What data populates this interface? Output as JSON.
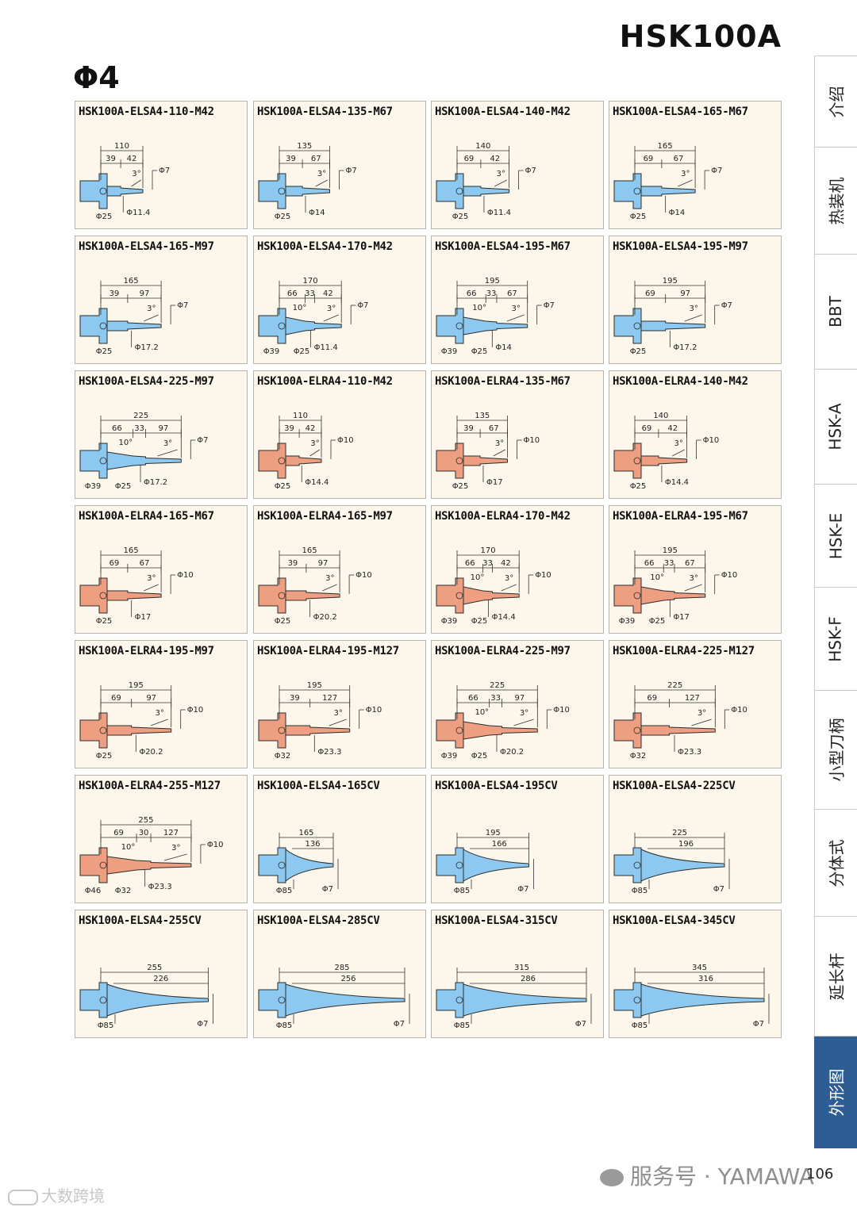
{
  "header": {
    "series": "HSK100A",
    "section": "Φ4"
  },
  "cards": [
    {
      "title": "HSK100A-ELSA4-110-M42",
      "kind": "nozzle",
      "color": "blue",
      "overall": "110",
      "sub": [
        "39",
        "42"
      ],
      "cone": false,
      "angle": "3°",
      "tip": "Φ7",
      "bases": [
        "Φ25"
      ],
      "neck": "Φ11.4"
    },
    {
      "title": "HSK100A-ELSA4-135-M67",
      "kind": "nozzle",
      "color": "blue",
      "overall": "135",
      "sub": [
        "39",
        "67"
      ],
      "cone": false,
      "angle": "3°",
      "tip": "Φ7",
      "bases": [
        "Φ25"
      ],
      "neck": "Φ14"
    },
    {
      "title": "HSK100A-ELSA4-140-M42",
      "kind": "nozzle",
      "color": "blue",
      "overall": "140",
      "sub": [
        "69",
        "42"
      ],
      "cone": false,
      "angle": "3°",
      "tip": "Φ7",
      "bases": [
        "Φ25"
      ],
      "neck": "Φ11.4"
    },
    {
      "title": "HSK100A-ELSA4-165-M67",
      "kind": "nozzle",
      "color": "blue",
      "overall": "165",
      "sub": [
        "69",
        "67"
      ],
      "cone": false,
      "angle": "3°",
      "tip": "Φ7",
      "bases": [
        "Φ25"
      ],
      "neck": "Φ14"
    },
    {
      "title": "HSK100A-ELSA4-165-M97",
      "kind": "nozzle",
      "color": "blue",
      "overall": "165",
      "sub": [
        "39",
        "97"
      ],
      "cone": false,
      "angle": "3°",
      "tip": "Φ7",
      "bases": [
        "Φ25"
      ],
      "neck": "Φ17.2"
    },
    {
      "title": "HSK100A-ELSA4-170-M42",
      "kind": "nozzle",
      "color": "blue",
      "overall": "170",
      "sub": [
        "66",
        "33",
        "42"
      ],
      "cone": true,
      "cone_angle": "10°",
      "angle": "3°",
      "tip": "Φ7",
      "bases": [
        "Φ39",
        "Φ25"
      ],
      "neck": "Φ11.4"
    },
    {
      "title": "HSK100A-ELSA4-195-M67",
      "kind": "nozzle",
      "color": "blue",
      "overall": "195",
      "sub": [
        "66",
        "33",
        "67"
      ],
      "cone": true,
      "cone_angle": "10°",
      "angle": "3°",
      "tip": "Φ7",
      "bases": [
        "Φ39",
        "Φ25"
      ],
      "neck": "Φ14"
    },
    {
      "title": "HSK100A-ELSA4-195-M97",
      "kind": "nozzle",
      "color": "blue",
      "overall": "195",
      "sub": [
        "69",
        "97"
      ],
      "cone": false,
      "angle": "3°",
      "tip": "Φ7",
      "bases": [
        "Φ25"
      ],
      "neck": "Φ17.2"
    },
    {
      "title": "HSK100A-ELSA4-225-M97",
      "kind": "nozzle",
      "color": "blue",
      "overall": "225",
      "sub": [
        "66",
        "33",
        "97"
      ],
      "cone": true,
      "cone_angle": "10°",
      "angle": "3°",
      "tip": "Φ7",
      "bases": [
        "Φ39",
        "Φ25"
      ],
      "neck": "Φ17.2"
    },
    {
      "title": "HSK100A-ELRA4-110-M42",
      "kind": "nozzle",
      "color": "red",
      "overall": "110",
      "sub": [
        "39",
        "42"
      ],
      "cone": false,
      "angle": "3°",
      "tip": "Φ10",
      "bases": [
        "Φ25"
      ],
      "neck": "Φ14.4"
    },
    {
      "title": "HSK100A-ELRA4-135-M67",
      "kind": "nozzle",
      "color": "red",
      "overall": "135",
      "sub": [
        "39",
        "67"
      ],
      "cone": false,
      "angle": "3°",
      "tip": "Φ10",
      "bases": [
        "Φ25"
      ],
      "neck": "Φ17"
    },
    {
      "title": "HSK100A-ELRA4-140-M42",
      "kind": "nozzle",
      "color": "red",
      "overall": "140",
      "sub": [
        "69",
        "42"
      ],
      "cone": false,
      "angle": "3°",
      "tip": "Φ10",
      "bases": [
        "Φ25"
      ],
      "neck": "Φ14.4"
    },
    {
      "title": "HSK100A-ELRA4-165-M67",
      "kind": "nozzle",
      "color": "red",
      "overall": "165",
      "sub": [
        "69",
        "67"
      ],
      "cone": false,
      "angle": "3°",
      "tip": "Φ10",
      "bases": [
        "Φ25"
      ],
      "neck": "Φ17"
    },
    {
      "title": "HSK100A-ELRA4-165-M97",
      "kind": "nozzle",
      "color": "red",
      "overall": "165",
      "sub": [
        "39",
        "97"
      ],
      "cone": false,
      "angle": "3°",
      "tip": "Φ10",
      "bases": [
        "Φ25"
      ],
      "neck": "Φ20.2"
    },
    {
      "title": "HSK100A-ELRA4-170-M42",
      "kind": "nozzle",
      "color": "red",
      "overall": "170",
      "sub": [
        "66",
        "33",
        "42"
      ],
      "cone": true,
      "cone_angle": "10°",
      "angle": "3°",
      "tip": "Φ10",
      "bases": [
        "Φ39",
        "Φ25"
      ],
      "neck": "Φ14.4"
    },
    {
      "title": "HSK100A-ELRA4-195-M67",
      "kind": "nozzle",
      "color": "red",
      "overall": "195",
      "sub": [
        "66",
        "33",
        "67"
      ],
      "cone": true,
      "cone_angle": "10°",
      "angle": "3°",
      "tip": "Φ10",
      "bases": [
        "Φ39",
        "Φ25"
      ],
      "neck": "Φ17"
    },
    {
      "title": "HSK100A-ELRA4-195-M97",
      "kind": "nozzle",
      "color": "red",
      "overall": "195",
      "sub": [
        "69",
        "97"
      ],
      "cone": false,
      "angle": "3°",
      "tip": "Φ10",
      "bases": [
        "Φ25"
      ],
      "neck": "Φ20.2"
    },
    {
      "title": "HSK100A-ELRA4-195-M127",
      "kind": "nozzle",
      "color": "red",
      "overall": "195",
      "sub": [
        "39",
        "127"
      ],
      "cone": false,
      "angle": "3°",
      "tip": "Φ10",
      "bases": [
        "Φ32"
      ],
      "neck": "Φ23.3"
    },
    {
      "title": "HSK100A-ELRA4-225-M97",
      "kind": "nozzle",
      "color": "red",
      "overall": "225",
      "sub": [
        "66",
        "33",
        "97"
      ],
      "cone": true,
      "cone_angle": "10°",
      "angle": "3°",
      "tip": "Φ10",
      "bases": [
        "Φ39",
        "Φ25"
      ],
      "neck": "Φ20.2"
    },
    {
      "title": "HSK100A-ELRA4-225-M127",
      "kind": "nozzle",
      "color": "red",
      "overall": "225",
      "sub": [
        "69",
        "127"
      ],
      "cone": false,
      "angle": "3°",
      "tip": "Φ10",
      "bases": [
        "Φ32"
      ],
      "neck": "Φ23.3"
    },
    {
      "title": "HSK100A-ELRA4-255-M127",
      "kind": "nozzle",
      "color": "red",
      "overall": "255",
      "sub": [
        "69",
        "30",
        "127"
      ],
      "cone": true,
      "cone_angle": "10°",
      "angle": "3°",
      "tip": "Φ10",
      "bases": [
        "Φ46",
        "Φ32"
      ],
      "neck": "Φ23.3"
    },
    {
      "title": "HSK100A-ELSA4-165CV",
      "kind": "cv",
      "color": "blue",
      "overall": "165",
      "inner": "136",
      "tip": "Φ7",
      "base": "Φ85"
    },
    {
      "title": "HSK100A-ELSA4-195CV",
      "kind": "cv",
      "color": "blue",
      "overall": "195",
      "inner": "166",
      "tip": "Φ7",
      "base": "Φ85"
    },
    {
      "title": "HSK100A-ELSA4-225CV",
      "kind": "cv",
      "color": "blue",
      "overall": "225",
      "inner": "196",
      "tip": "Φ7",
      "base": "Φ85"
    },
    {
      "title": "HSK100A-ELSA4-255CV",
      "kind": "cv",
      "color": "blue",
      "overall": "255",
      "inner": "226",
      "tip": "Φ7",
      "base": "Φ85"
    },
    {
      "title": "HSK100A-ELSA4-285CV",
      "kind": "cv",
      "color": "blue",
      "overall": "285",
      "inner": "256",
      "tip": "Φ7",
      "base": "Φ85"
    },
    {
      "title": "HSK100A-ELSA4-315CV",
      "kind": "cv",
      "color": "blue",
      "overall": "315",
      "inner": "286",
      "tip": "Φ7",
      "base": "Φ85"
    },
    {
      "title": "HSK100A-ELSA4-345CV",
      "kind": "cv",
      "color": "blue",
      "overall": "345",
      "inner": "316",
      "tip": "Φ7",
      "base": "Φ85"
    }
  ],
  "colors": {
    "blue": "#8cc8ef",
    "red": "#ee9f82",
    "outline": "#2d2d2d",
    "active_tab": "#2d5d93"
  },
  "sidebar": {
    "tabs": [
      {
        "label": "介绍",
        "active": false
      },
      {
        "label": "热装机",
        "active": false
      },
      {
        "label": "BBT",
        "active": false
      },
      {
        "label": "HSK-A",
        "active": false
      },
      {
        "label": "HSK-E",
        "active": false
      },
      {
        "label": "HSK-F",
        "active": false
      },
      {
        "label": "小型刀柄",
        "active": false
      },
      {
        "label": "分体式",
        "active": false
      },
      {
        "label": "延长杆",
        "active": false
      },
      {
        "label": "外形图",
        "active": true
      }
    ]
  },
  "footer": {
    "page": "106",
    "watermark": "服务号 · YAMAWA",
    "corner": "大数跨境"
  }
}
